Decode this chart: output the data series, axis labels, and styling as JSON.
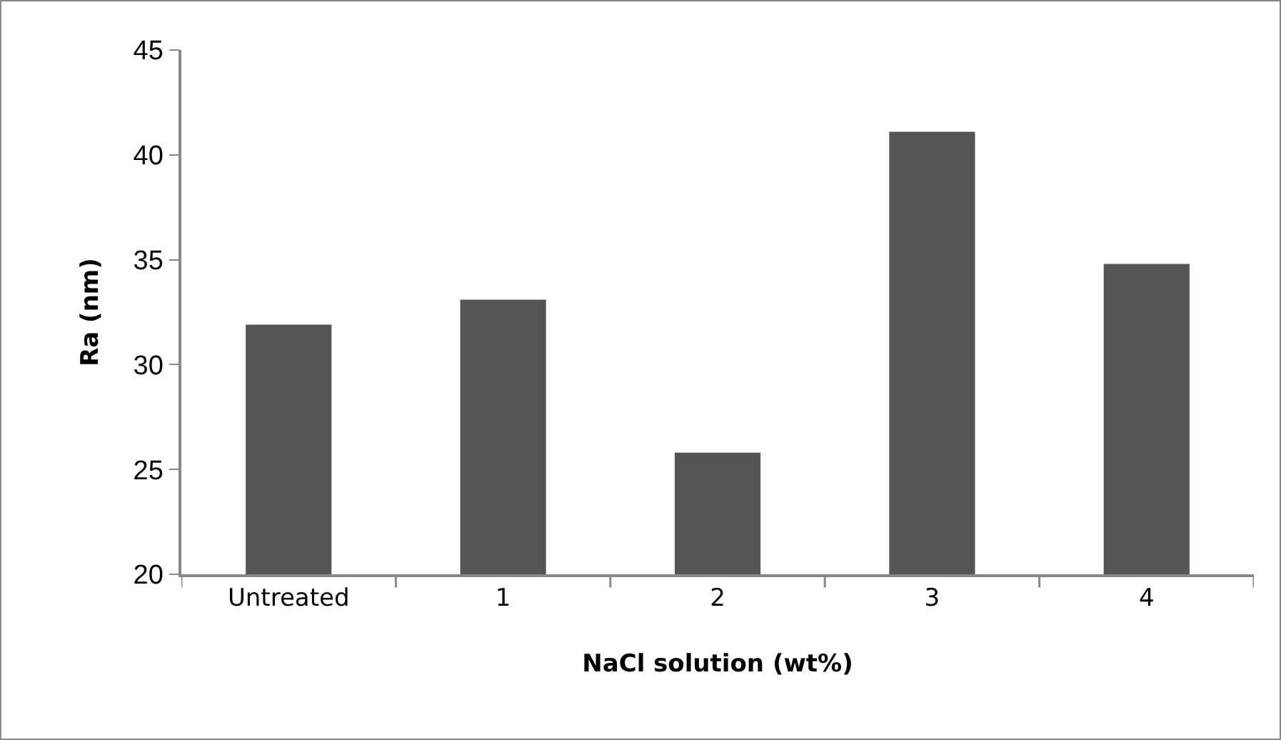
{
  "chart_data": {
    "type": "bar",
    "xlabel": "NaCl solution (wt%)",
    "ylabel": "Ra (nm)",
    "categories": [
      "Untreated",
      "1",
      "2",
      "3",
      "4"
    ],
    "values": [
      31.9,
      33.1,
      25.8,
      41.1,
      34.8
    ],
    "color": "#555555",
    "ylim": [
      20,
      45
    ],
    "yticks": [
      20,
      25,
      30,
      35,
      40,
      45
    ],
    "grid": false,
    "legend": false
  }
}
